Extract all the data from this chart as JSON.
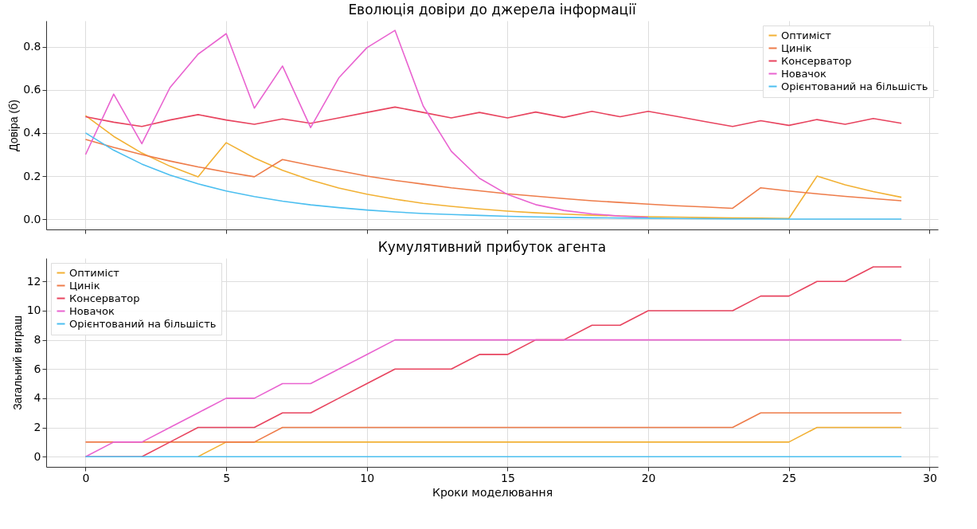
{
  "chart_data": [
    {
      "type": "line",
      "title": "Еволюція довіри до джерела інформації",
      "ylabel": "Довіра (б)",
      "x": [
        0,
        1,
        2,
        3,
        4,
        5,
        6,
        7,
        8,
        9,
        10,
        11,
        12,
        13,
        14,
        15,
        16,
        17,
        18,
        19,
        20,
        21,
        22,
        23,
        24,
        25,
        26,
        27,
        28,
        29
      ],
      "series": [
        {
          "name": "Оптиміст",
          "color": "#f2b134",
          "values": [
            0.48,
            0.384,
            0.307,
            0.246,
            0.197,
            0.355,
            0.284,
            0.227,
            0.182,
            0.145,
            0.116,
            0.093,
            0.074,
            0.06,
            0.048,
            0.038,
            0.03,
            0.024,
            0.019,
            0.016,
            0.012,
            0.01,
            0.008,
            0.006,
            0.005,
            0.004,
            0.2,
            0.16,
            0.128,
            0.102
          ]
        },
        {
          "name": "Цинік",
          "color": "#ee7c4a",
          "values": [
            0.37,
            0.333,
            0.3,
            0.27,
            0.243,
            0.219,
            0.197,
            0.277,
            0.25,
            0.225,
            0.2,
            0.18,
            0.163,
            0.146,
            0.132,
            0.118,
            0.107,
            0.096,
            0.086,
            0.078,
            0.07,
            0.063,
            0.057,
            0.051,
            0.146,
            0.131,
            0.118,
            0.106,
            0.096,
            0.086
          ]
        },
        {
          "name": "Консерватор",
          "color": "#e8445f",
          "values": [
            0.475,
            0.45,
            0.43,
            0.46,
            0.485,
            0.46,
            0.44,
            0.465,
            0.445,
            0.47,
            0.495,
            0.52,
            0.495,
            0.47,
            0.495,
            0.47,
            0.497,
            0.472,
            0.5,
            0.475,
            0.5,
            0.477,
            0.453,
            0.43,
            0.457,
            0.435,
            0.462,
            0.44,
            0.467,
            0.445
          ]
        },
        {
          "name": "Новачок",
          "color": "#e963d0",
          "values": [
            0.3,
            0.58,
            0.35,
            0.61,
            0.765,
            0.86,
            0.515,
            0.71,
            0.425,
            0.655,
            0.795,
            0.875,
            0.525,
            0.315,
            0.19,
            0.115,
            0.068,
            0.041,
            0.025,
            0.015,
            0.009,
            null,
            null,
            null,
            null,
            null,
            null,
            null,
            null,
            null
          ]
        },
        {
          "name": "Орієнтований на більшість",
          "color": "#4cbff0",
          "values": [
            0.4,
            0.32,
            0.256,
            0.205,
            0.164,
            0.131,
            0.105,
            0.084,
            0.067,
            0.054,
            0.043,
            0.034,
            0.027,
            0.022,
            0.018,
            0.014,
            0.011,
            0.009,
            0.007,
            0.006,
            0.005,
            0.004,
            0.003,
            0.002,
            0.002,
            0.001,
            0.001,
            0.001,
            0.001,
            0.001
          ]
        }
      ],
      "xlim": [
        -1.4,
        30.3
      ],
      "xticks": [
        0,
        5,
        10,
        15,
        20,
        25,
        30
      ],
      "ylim": [
        -0.047,
        0.92
      ],
      "yticks": [
        {
          "value": 0,
          "label": "0.0"
        },
        {
          "value": 0.2,
          "label": "0.2"
        },
        {
          "value": 0.4,
          "label": "0.4"
        },
        {
          "value": 0.6,
          "label": "0.6"
        },
        {
          "value": 0.8,
          "label": "0.8"
        }
      ],
      "grid": true,
      "legend": "top right",
      "tick_labels": "y"
    },
    {
      "type": "line",
      "title": "Кумулятивний прибуток агента",
      "xlabel": "Кроки моделювання",
      "ylabel": "Загальний виграш",
      "x": [
        0,
        1,
        2,
        3,
        4,
        5,
        6,
        7,
        8,
        9,
        10,
        11,
        12,
        13,
        14,
        15,
        16,
        17,
        18,
        19,
        20,
        21,
        22,
        23,
        24,
        25,
        26,
        27,
        28,
        29
      ],
      "series": [
        {
          "name": "Оптиміст",
          "color": "#f2b134",
          "values": [
            null,
            null,
            null,
            null,
            0,
            1,
            1,
            1,
            1,
            1,
            1,
            1,
            1,
            1,
            1,
            1,
            1,
            1,
            1,
            1,
            1,
            1,
            1,
            1,
            1,
            1,
            2,
            2,
            2,
            2
          ]
        },
        {
          "name": "Цинік",
          "color": "#ee7c4a",
          "values": [
            1,
            1,
            1,
            1,
            1,
            1,
            1,
            2,
            2,
            2,
            2,
            2,
            2,
            2,
            2,
            2,
            2,
            2,
            2,
            2,
            2,
            2,
            2,
            2,
            3,
            3,
            3,
            3,
            3,
            3
          ]
        },
        {
          "name": "Консерватор",
          "color": "#e8445f",
          "values": [
            0,
            0,
            0,
            1,
            2,
            2,
            2,
            3,
            3,
            4,
            5,
            6,
            6,
            6,
            7,
            7,
            8,
            8,
            9,
            9,
            10,
            10,
            10,
            10,
            11,
            11,
            12,
            12,
            13,
            13
          ]
        },
        {
          "name": "Новачок",
          "color": "#e963d0",
          "values": [
            0,
            1,
            1,
            2,
            3,
            4,
            4,
            5,
            5,
            6,
            7,
            8,
            8,
            8,
            8,
            8,
            8,
            8,
            8,
            8,
            8,
            8,
            8,
            8,
            8,
            8,
            8,
            8,
            8,
            8
          ]
        },
        {
          "name": "Орієнтований на більшість",
          "color": "#4cbff0",
          "values": [
            0,
            0,
            0,
            0,
            0,
            0,
            0,
            0,
            0,
            0,
            0,
            0,
            0,
            0,
            0,
            0,
            0,
            0,
            0,
            0,
            0,
            0,
            0,
            0,
            0,
            0,
            0,
            0,
            0,
            0
          ]
        }
      ],
      "xlim": [
        -1.4,
        30.3
      ],
      "xticks": [
        0,
        5,
        10,
        15,
        20,
        25,
        30
      ],
      "ylim": [
        -0.7,
        13.6
      ],
      "yticks": [
        0,
        2,
        4,
        6,
        8,
        10,
        12
      ],
      "grid": true,
      "legend": "top left"
    }
  ]
}
